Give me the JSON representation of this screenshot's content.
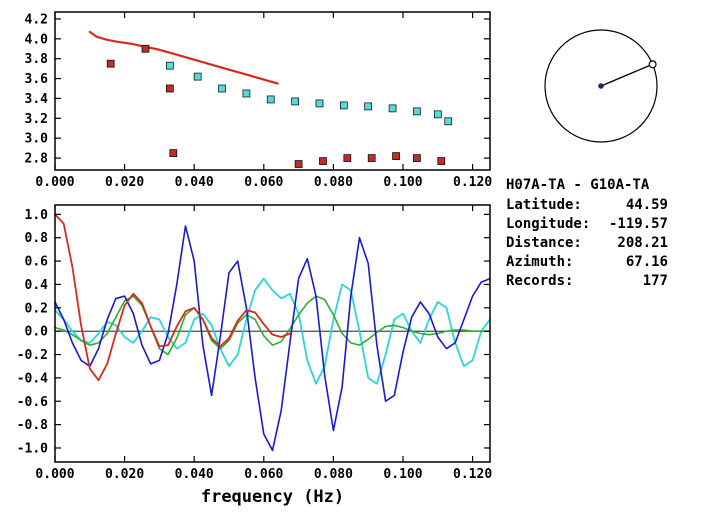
{
  "info_panel": {
    "title": "H07A-TA - G10A-TA",
    "rows": [
      {
        "label": "Latitude:",
        "value": "44.59"
      },
      {
        "label": "Longitude:",
        "value": "-119.57"
      },
      {
        "label": "Distance:",
        "value": "208.21"
      },
      {
        "label": "Azimuth:",
        "value": "67.16"
      },
      {
        "label": "Records:",
        "value": "177"
      }
    ]
  },
  "azimuth_circle": {
    "azimuth_deg": 67.16,
    "circle_color": "#000000",
    "line_color": "#000000",
    "center_dot_color": "#1a2a7a",
    "marker": "open-circle"
  },
  "chart_data": [
    {
      "type": "scatter",
      "name": "dispersion-panel",
      "title": "",
      "xlabel": "",
      "ylabel": "",
      "xlim": [
        0,
        0.125
      ],
      "ylim": [
        2.68,
        4.27
      ],
      "grid": false,
      "xticks": {
        "values": [
          0,
          0.02,
          0.04,
          0.06,
          0.08,
          0.1,
          0.12
        ],
        "labels": [
          "0.000",
          "0.020",
          "0.040",
          "0.060",
          "0.080",
          "0.100",
          "0.120"
        ]
      },
      "yticks": {
        "values": [
          2.8,
          3.0,
          3.2,
          3.4,
          3.6,
          3.8,
          4.0,
          4.2
        ],
        "labels": [
          "2.8",
          "3.0",
          "3.2",
          "3.4",
          "3.6",
          "3.8",
          "4.0",
          "4.2"
        ]
      },
      "series": [
        {
          "name": "reference-dispersion-curve",
          "type": "line",
          "color": "#d42a20",
          "width": 2.2,
          "x": [
            0.01,
            0.012,
            0.015,
            0.018,
            0.022,
            0.026,
            0.03,
            0.034,
            0.038,
            0.042,
            0.046,
            0.05,
            0.054,
            0.058,
            0.062,
            0.064
          ],
          "y": [
            4.07,
            4.02,
            3.99,
            3.97,
            3.95,
            3.92,
            3.89,
            3.85,
            3.81,
            3.77,
            3.73,
            3.69,
            3.65,
            3.61,
            3.57,
            3.55
          ]
        },
        {
          "name": "measurement-squares-red",
          "type": "scatter",
          "color": "#bf2d26",
          "x": [
            0.016,
            0.026,
            0.033,
            0.034,
            0.07,
            0.077,
            0.084,
            0.091,
            0.098,
            0.104,
            0.111
          ],
          "y": [
            3.75,
            3.9,
            3.5,
            2.85,
            2.74,
            2.77,
            2.8,
            2.8,
            2.82,
            2.8,
            2.77
          ]
        },
        {
          "name": "measurement-squares-cyan",
          "type": "scatter",
          "color": "#57d9d9",
          "x": [
            0.033,
            0.041,
            0.048,
            0.055,
            0.062,
            0.069,
            0.076,
            0.083,
            0.09,
            0.097,
            0.104,
            0.11,
            0.113
          ],
          "y": [
            3.73,
            3.62,
            3.5,
            3.45,
            3.39,
            3.37,
            3.35,
            3.33,
            3.32,
            3.3,
            3.27,
            3.24,
            3.17
          ]
        }
      ]
    },
    {
      "type": "line",
      "name": "waveform-panel",
      "title": "",
      "xlabel": "frequency (Hz)",
      "ylabel": "",
      "xlim": [
        0,
        0.125
      ],
      "ylim": [
        -1.12,
        1.08
      ],
      "grid": false,
      "zero_line": true,
      "xticks": {
        "values": [
          0,
          0.02,
          0.04,
          0.06,
          0.08,
          0.1,
          0.12
        ],
        "labels": [
          "0.000",
          "0.020",
          "0.040",
          "0.060",
          "0.080",
          "0.100",
          "0.120"
        ]
      },
      "yticks": {
        "values": [
          -1.0,
          -0.8,
          -0.6,
          -0.4,
          -0.2,
          0.0,
          0.2,
          0.4,
          0.6,
          0.8,
          1.0
        ],
        "labels": [
          "-1.0",
          "-0.8",
          "-0.6",
          "-0.4",
          "-0.2",
          "0.0",
          "0.2",
          "0.4",
          "0.6",
          "0.8",
          "1.0"
        ]
      },
      "series": [
        {
          "name": "waveform-cyan",
          "type": "line",
          "color": "#2ad6d6",
          "width": 1.8,
          "x_step": 0.0025,
          "y": [
            0.18,
            0.1,
            0.0,
            -0.08,
            -0.1,
            -0.02,
            0.08,
            0.05,
            -0.05,
            -0.1,
            0.0,
            0.12,
            0.1,
            -0.05,
            -0.15,
            -0.1,
            0.1,
            0.15,
            0.05,
            -0.15,
            -0.3,
            -0.2,
            0.1,
            0.35,
            0.45,
            0.35,
            0.28,
            0.32,
            0.15,
            -0.25,
            -0.45,
            -0.3,
            0.1,
            0.4,
            0.35,
            0.0,
            -0.4,
            -0.45,
            -0.2,
            0.1,
            0.15,
            0.0,
            -0.1,
            0.1,
            0.25,
            0.2,
            -0.1,
            -0.3,
            -0.25,
            0.0,
            0.1
          ]
        },
        {
          "name": "waveform-green",
          "type": "line",
          "color": "#2fae2f",
          "width": 1.6,
          "x_step": 0.0025,
          "y": [
            0.03,
            0.01,
            -0.03,
            -0.08,
            -0.12,
            -0.1,
            -0.02,
            0.12,
            0.26,
            0.3,
            0.22,
            0.04,
            -0.15,
            -0.2,
            -0.06,
            0.14,
            0.2,
            0.1,
            -0.08,
            -0.15,
            -0.08,
            0.07,
            0.14,
            0.1,
            -0.04,
            -0.12,
            -0.09,
            0.02,
            0.14,
            0.24,
            0.3,
            0.27,
            0.14,
            -0.02,
            -0.1,
            -0.12,
            -0.07,
            -0.01,
            0.04,
            0.05,
            0.03,
            0.0,
            -0.02,
            -0.03,
            -0.02,
            0.0,
            0.01,
            0.01,
            0.0,
            0.0,
            0.0
          ]
        },
        {
          "name": "waveform-blue",
          "type": "line",
          "color": "#1a1acc",
          "width": 1.6,
          "x_step": 0.0025,
          "y": [
            0.25,
            0.1,
            -0.1,
            -0.25,
            -0.3,
            -0.15,
            0.1,
            0.28,
            0.3,
            0.15,
            -0.12,
            -0.28,
            -0.25,
            -0.02,
            0.4,
            0.9,
            0.6,
            -0.12,
            -0.55,
            -0.05,
            0.5,
            0.6,
            0.2,
            -0.4,
            -0.88,
            -1.02,
            -0.68,
            -0.1,
            0.45,
            0.62,
            0.3,
            -0.38,
            -0.85,
            -0.48,
            0.3,
            0.8,
            0.58,
            -0.12,
            -0.6,
            -0.55,
            -0.18,
            0.12,
            0.25,
            0.15,
            -0.05,
            -0.15,
            -0.1,
            0.1,
            0.3,
            0.42,
            0.45
          ]
        },
        {
          "name": "waveform-red",
          "type": "line",
          "color": "#d42a20",
          "width": 1.8,
          "x_step": 0.0025,
          "y": [
            1.0,
            0.92,
            0.55,
            0.05,
            -0.32,
            -0.42,
            -0.28,
            -0.02,
            0.22,
            0.32,
            0.24,
            0.04,
            -0.13,
            -0.12,
            0.04,
            0.17,
            0.2,
            0.1,
            -0.06,
            -0.13,
            -0.06,
            0.09,
            0.18,
            0.16,
            0.06,
            -0.03,
            -0.05,
            -0.02
          ]
        }
      ]
    }
  ]
}
